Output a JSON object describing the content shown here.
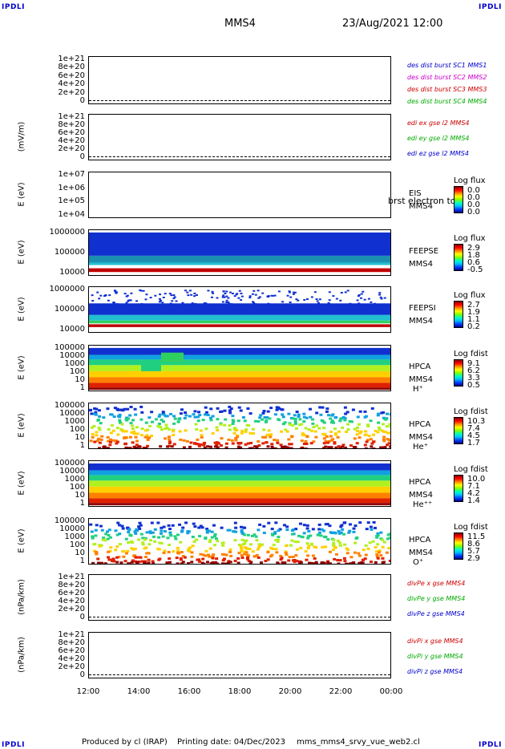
{
  "header": {
    "corner_left_top": "IPDLI",
    "corner_right_top": "IPDLI",
    "corner_left_bottom": "IPDLI",
    "corner_right_bottom": "IPDLI",
    "spacecraft": "MMS4",
    "datetime": "23/Aug/2021 12:00"
  },
  "footer": {
    "produced": "Produced by cl (IRAP)",
    "printing": "Printing date: 04/Dec/2023",
    "file": "mms_mms4_srvy_vue_web2.cl"
  },
  "colors": {
    "mms1": "#0000cc",
    "mms2": "#cc00cc",
    "mms3": "#cc0000",
    "mms4": "#00aa00",
    "x": "#cc0000",
    "y": "#00aa00",
    "z": "#0000cc"
  },
  "chart_data": {
    "type": "heatmap",
    "x_ticks": [
      "12:00",
      "14:00",
      "16:00",
      "18:00",
      "20:00",
      "22:00",
      "00:00"
    ],
    "panels": [
      {
        "id": "p1",
        "ylabel": "",
        "yticks": [
          "1e+21",
          "8e+20",
          "6e+20",
          "4e+20",
          "2e+20",
          "0"
        ],
        "legend": [
          {
            "text": "des dist burst SC1 MMS1",
            "color": "mms1"
          },
          {
            "text": "des dist burst SC2 MMS2",
            "color": "mms2"
          },
          {
            "text": "des dist burst SC3 MMS3",
            "color": "mms3"
          },
          {
            "text": "des dist burst SC4 MMS4",
            "color": "mms4"
          }
        ]
      },
      {
        "id": "p2",
        "ylabel": "(mV/m)",
        "yticks": [
          "1e+21",
          "8e+20",
          "6e+20",
          "4e+20",
          "2e+20",
          "0"
        ],
        "legend": [
          {
            "text": "edi ex gse l2 MMS4",
            "color": "x"
          },
          {
            "text": "edi ey gse l2 MMS4",
            "color": "y"
          },
          {
            "text": "edi ez gse l2 MMS4",
            "color": "z"
          }
        ]
      },
      {
        "id": "p3",
        "ylabel": "E (eV)",
        "yticks": [
          "1e+07",
          "1e+06",
          "1e+05",
          "1e+04"
        ],
        "instrument": [
          "EIS",
          "MMS4"
        ],
        "overlay": "brst electron to",
        "cbar_title": "Log flux",
        "cbar_values": [
          "0.0",
          "0.0",
          "0.0",
          "0.0"
        ]
      },
      {
        "id": "p4",
        "ylabel": "E (eV)",
        "yticks": [
          "1000000",
          "100000",
          "10000"
        ],
        "instrument": [
          "FEEPSE",
          "MMS4"
        ],
        "cbar_title": "Log flux",
        "cbar_values": [
          "2.9",
          "1.8",
          "0.6",
          "-0.5"
        ]
      },
      {
        "id": "p5",
        "ylabel": "E (eV)",
        "yticks": [
          "1000000",
          "100000",
          "10000"
        ],
        "instrument": [
          "FEEPSI",
          "MMS4"
        ],
        "cbar_title": "Log flux",
        "cbar_values": [
          "2.7",
          "1.9",
          "1.1",
          "0.2"
        ]
      },
      {
        "id": "p6",
        "ylabel": "E (eV)",
        "yticks": [
          "100000",
          "10000",
          "1000",
          "100",
          "10",
          "1"
        ],
        "instrument": [
          "HPCA",
          "MMS4",
          "H⁺"
        ],
        "cbar_title": "Log fdist",
        "cbar_values": [
          "9.1",
          "6.2",
          "3.3",
          "0.5"
        ]
      },
      {
        "id": "p7",
        "ylabel": "E (eV)",
        "yticks": [
          "100000",
          "10000",
          "1000",
          "100",
          "10",
          "1"
        ],
        "instrument": [
          "HPCA",
          "MMS4",
          "He⁺"
        ],
        "cbar_title": "Log fdist",
        "cbar_values": [
          "10.3",
          "7.4",
          "4.5",
          "1.7"
        ]
      },
      {
        "id": "p8",
        "ylabel": "E (eV)",
        "yticks": [
          "100000",
          "10000",
          "1000",
          "100",
          "10",
          "1"
        ],
        "instrument": [
          "HPCA",
          "MMS4",
          "He⁺⁺"
        ],
        "cbar_title": "Log fdist",
        "cbar_values": [
          "10.0",
          "7.1",
          "4.2",
          "1.4"
        ]
      },
      {
        "id": "p9",
        "ylabel": "E (eV)",
        "yticks": [
          "100000",
          "10000",
          "1000",
          "100",
          "10",
          "1"
        ],
        "instrument": [
          "HPCA",
          "MMS4",
          "O⁺"
        ],
        "cbar_title": "Log fdist",
        "cbar_values": [
          "11.5",
          "8.6",
          "5.7",
          "2.9"
        ]
      },
      {
        "id": "p10",
        "ylabel": "(nPa/km)",
        "yticks": [
          "1e+21",
          "8e+20",
          "6e+20",
          "4e+20",
          "2e+20",
          "0"
        ],
        "legend": [
          {
            "text": "divPe x gse MMS4",
            "color": "x"
          },
          {
            "text": "divPe y gse MMS4",
            "color": "y"
          },
          {
            "text": "divPe z gse MMS4",
            "color": "z"
          }
        ]
      },
      {
        "id": "p11",
        "ylabel": "(nPa/km)",
        "yticks": [
          "1e+21",
          "8e+20",
          "6e+20",
          "4e+20",
          "2e+20",
          "0"
        ],
        "legend": [
          {
            "text": "divPi x gse MMS4",
            "color": "x"
          },
          {
            "text": "divPi y gse MMS4",
            "color": "y"
          },
          {
            "text": "divPi z gse MMS4",
            "color": "z"
          }
        ]
      }
    ]
  }
}
